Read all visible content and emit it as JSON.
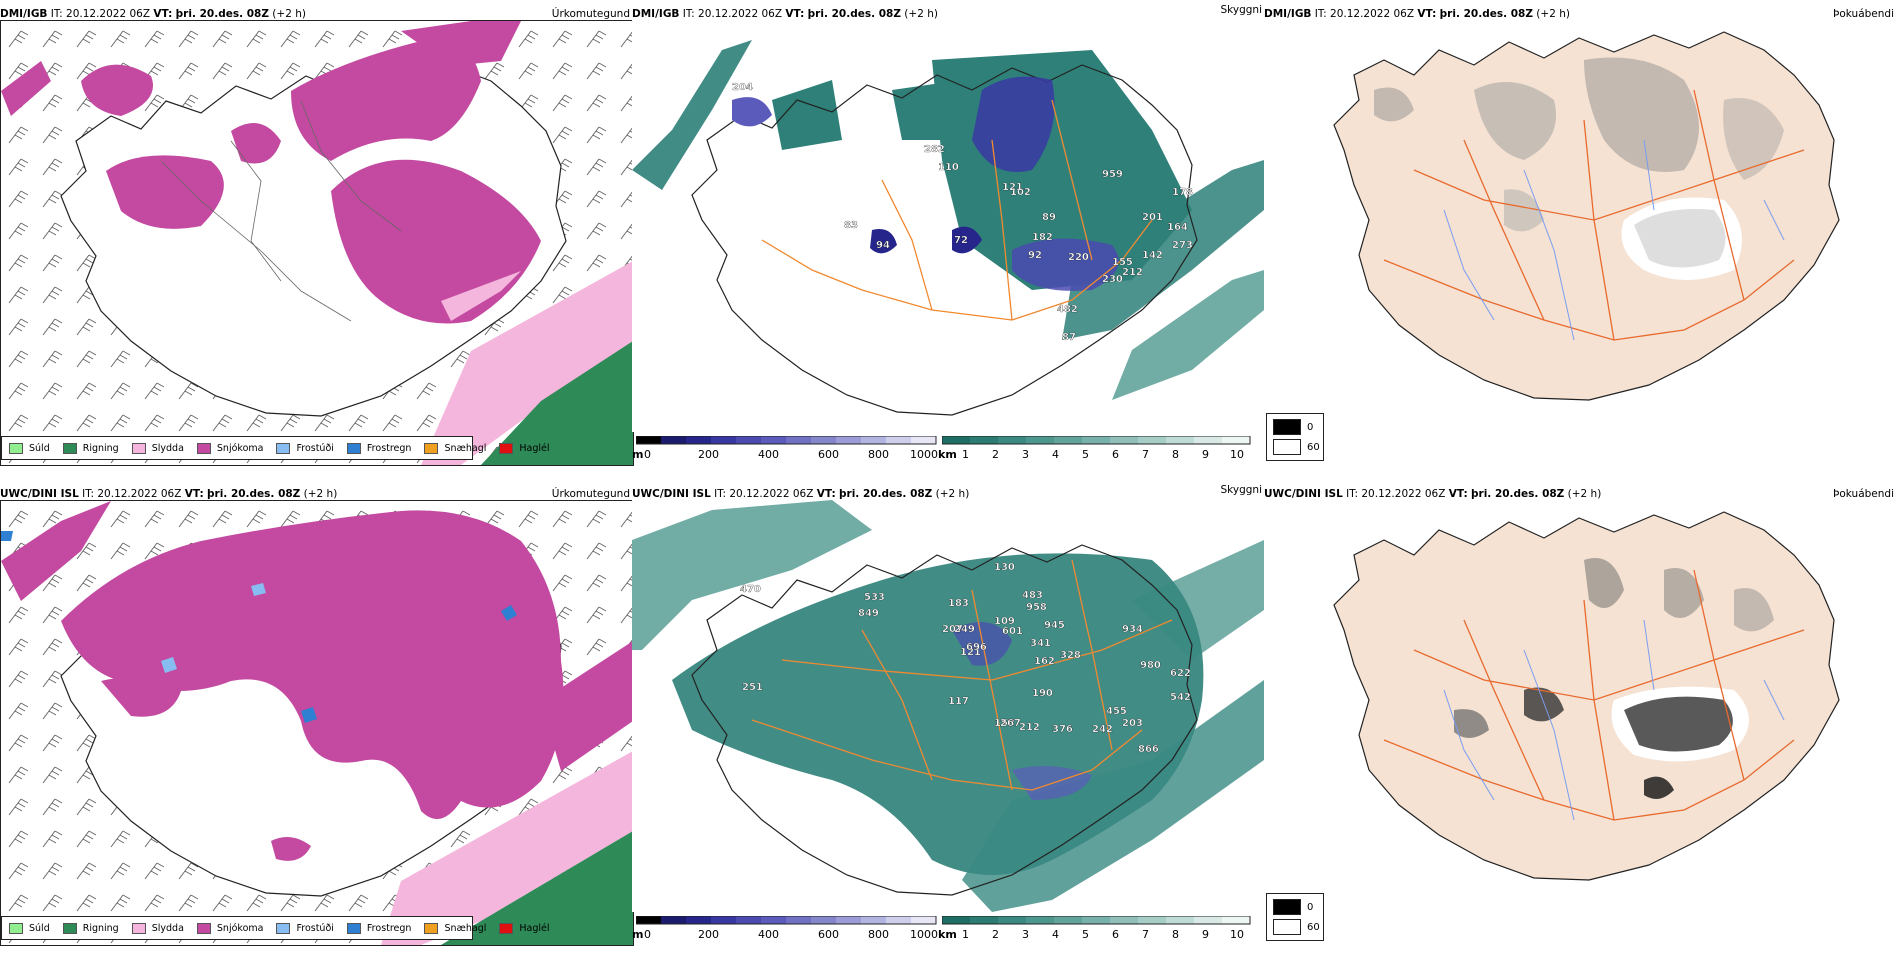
{
  "rows": [
    {
      "model": "DMI/IGB",
      "it_label": "IT:",
      "it_value": "20.12.2022 06Z",
      "vt_label": "VT:",
      "vt_value": "þri. 20.des. 08Z",
      "lead": "(+2 h)",
      "visibility_labels": [
        "72",
        "83",
        "87",
        "89",
        "92",
        "94",
        "102",
        "110",
        "121",
        "142",
        "155",
        "164",
        "178",
        "182",
        "201",
        "204",
        "212",
        "220",
        "230",
        "273",
        "282",
        "482",
        "959"
      ]
    },
    {
      "model": "UWC/DINI ISL",
      "it_label": "IT:",
      "it_value": "20.12.2022 06Z",
      "vt_label": "VT:",
      "vt_value": "þri. 20.des. 08Z",
      "lead": "(+2 h)",
      "visibility_labels": [
        "109",
        "117",
        "121",
        "130",
        "153",
        "162",
        "183",
        "190",
        "203",
        "207",
        "212",
        "242",
        "249",
        "251",
        "267",
        "328",
        "341",
        "376",
        "455",
        "470",
        "483",
        "533",
        "542",
        "601",
        "622",
        "696",
        "849",
        "866",
        "934",
        "945",
        "958",
        "980"
      ]
    }
  ],
  "panel_titles": {
    "precip": "Úrkomutegund",
    "visibility": "Skyggni",
    "fog": "Þokuábendi"
  },
  "precip_legend": [
    {
      "label": "Súld",
      "color": "#90ee90"
    },
    {
      "label": "Rigning",
      "color": "#2e8b57"
    },
    {
      "label": "Slydda",
      "color": "#f4b6dc"
    },
    {
      "label": "Snjókoma",
      "color": "#c34aa0"
    },
    {
      "label": "Frostúði",
      "color": "#87bdf0"
    },
    {
      "label": "Frostregn",
      "color": "#2f7fd2"
    },
    {
      "label": "Snæhagl",
      "color": "#f0a020"
    },
    {
      "label": "Haglél",
      "color": "#e01010"
    }
  ],
  "vis_colorbar_m": {
    "unit": "m",
    "ticks": [
      "0",
      "200",
      "400",
      "600",
      "800",
      "1000"
    ],
    "colors": [
      "#000000",
      "#1a1a6e",
      "#25258c",
      "#3838a3",
      "#4a4ab0",
      "#5b5bbb",
      "#7070c4",
      "#8686cc",
      "#9c9cd6",
      "#b4b4e0",
      "#cfcfec",
      "#e6e6f6"
    ]
  },
  "vis_colorbar_km": {
    "unit": "km",
    "ticks": [
      "1",
      "2",
      "3",
      "4",
      "5",
      "6",
      "7",
      "8",
      "9",
      "10"
    ],
    "colors": [
      "#1d6e66",
      "#2a7c74",
      "#3a8a82",
      "#4d978f",
      "#62a49c",
      "#78b1aa",
      "#8fbfb8",
      "#a7cdc7",
      "#bfdbd6",
      "#d8e9e6",
      "#eef6f4"
    ]
  },
  "fog_legend": [
    {
      "label": "0",
      "color": "#000000"
    },
    {
      "label": "60",
      "color": "#ffffff"
    }
  ],
  "colors": {
    "land_fog": "#f5e2d3",
    "roads": "#e86a2e",
    "rivers": "#7a9cf0",
    "vis_road": "#f08a30",
    "vis_field": "#2e8079"
  }
}
